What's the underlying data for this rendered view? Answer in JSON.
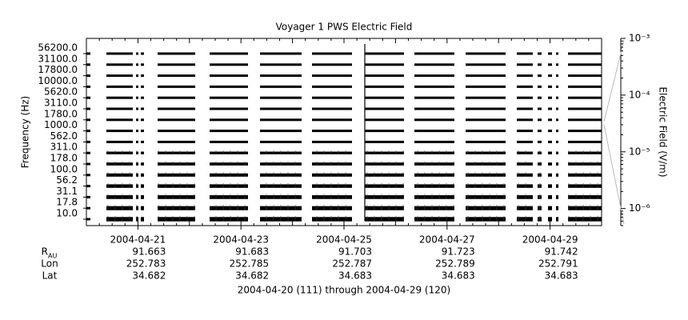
{
  "chart_data": {
    "type": "stackplot",
    "title": "Voyager 1 PWS Electric Field",
    "ylabel": "Frequency (Hz)",
    "yticks": [
      {
        "value": 56200,
        "label": "56200.0"
      },
      {
        "value": 31100,
        "label": "31100.0"
      },
      {
        "value": 17800,
        "label": "17800.0"
      },
      {
        "value": 10000,
        "label": "10000.0"
      },
      {
        "value": 5620,
        "label": "5620.0"
      },
      {
        "value": 3110,
        "label": "3110.0"
      },
      {
        "value": 1780,
        "label": "1780.0"
      },
      {
        "value": 1000,
        "label": "1000.0"
      },
      {
        "value": 562,
        "label": "562.0"
      },
      {
        "value": 311,
        "label": "311.0"
      },
      {
        "value": 178,
        "label": "178.0"
      },
      {
        "value": 100,
        "label": "100.0"
      },
      56.2,
      31.1,
      17.8,
      {
        "value": 10,
        "label": "10.0"
      }
    ],
    "xlim": [
      "2004-04-20",
      "2004-04-30"
    ],
    "xticks": [
      "2004-04-21",
      "2004-04-23",
      "2004-04-25",
      "2004-04-27",
      "2004-04-29"
    ],
    "y2label": "Electric Field (V/m)",
    "y2scale": "log",
    "y2lim": [
      5e-07,
      0.001
    ],
    "y2ticks": [
      {
        "value": 0.001,
        "label": "10⁻³"
      },
      {
        "value": 0.0001,
        "label": "10⁻⁴"
      },
      {
        "value": 1e-05,
        "label": "10⁻⁵"
      },
      {
        "value": 1e-06,
        "label": "10⁻⁶"
      }
    ],
    "ephemeris": [
      {
        "label": "R",
        "sub": "AU",
        "values": [
          91.663,
          91.683,
          91.703,
          91.723,
          91.742
        ]
      },
      {
        "label": "Lon",
        "values": [
          252.783,
          252.785,
          252.787,
          252.789,
          252.791
        ]
      },
      {
        "label": "Lat",
        "values": [
          34.682,
          34.682,
          34.683,
          34.683,
          34.683
        ]
      }
    ],
    "caption": "2004-04-20 (111) through 2004-04-29 (120)"
  }
}
